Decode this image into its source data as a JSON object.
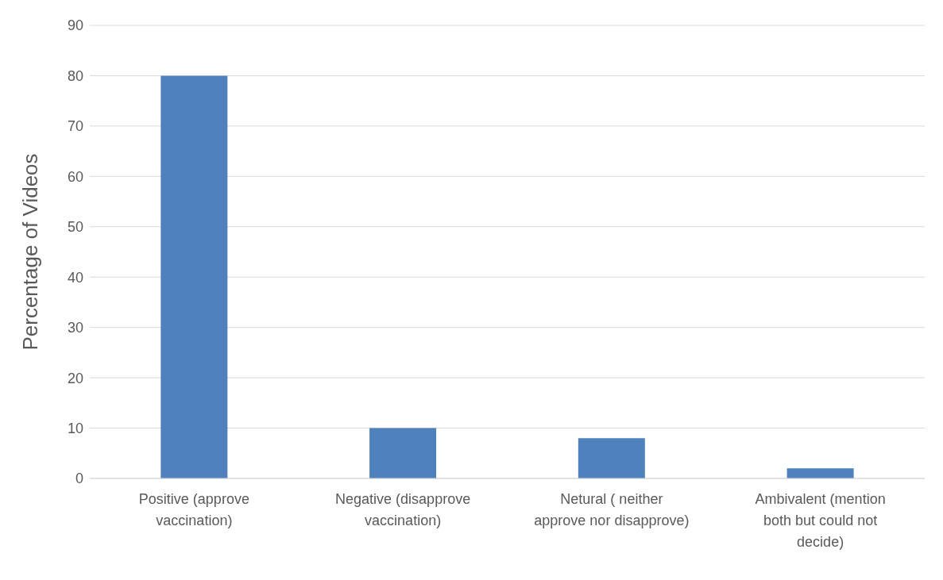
{
  "chart_data": {
    "type": "bar",
    "ylabel": "Percentage of Videos",
    "categories": [
      "Positive (approve vaccination)",
      "Negative (disapprove vaccination)",
      "Netural ( neither approve nor disapprove)",
      "Ambivalent (mention both but could not decide)"
    ],
    "values": [
      80,
      10,
      8,
      2
    ],
    "color": "#4f81bd",
    "ylim": [
      0,
      90
    ],
    "yticks": [
      0,
      10,
      20,
      30,
      40,
      50,
      60,
      70,
      80,
      90
    ],
    "grid": "y"
  }
}
